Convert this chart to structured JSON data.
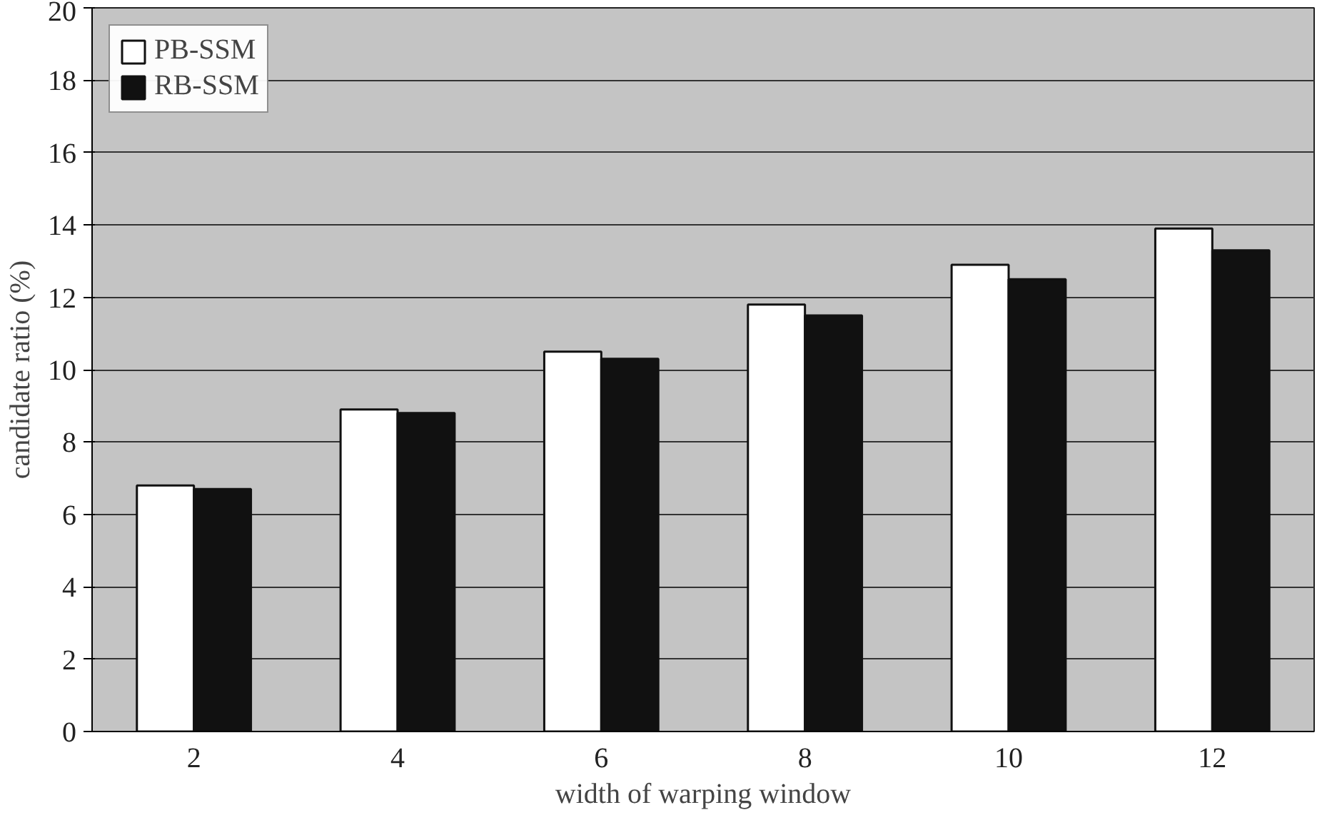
{
  "chart_data": {
    "type": "bar",
    "xlabel": "width of warping window",
    "ylabel": "candidate ratio (%)",
    "categories": [
      "2",
      "4",
      "6",
      "8",
      "10",
      "12"
    ],
    "series": [
      {
        "name": "PB-SSM",
        "color": "#ffffff",
        "values": [
          6.8,
          8.9,
          10.5,
          11.8,
          12.9,
          13.9
        ]
      },
      {
        "name": "RB-SSM",
        "color": "#111111",
        "values": [
          6.7,
          8.8,
          10.3,
          11.5,
          12.5,
          13.3
        ]
      }
    ],
    "ylim": [
      0,
      20
    ],
    "yticks": [
      0,
      2,
      4,
      6,
      8,
      10,
      12,
      14,
      16,
      18,
      20
    ],
    "grid": "y",
    "legend": "top left"
  }
}
